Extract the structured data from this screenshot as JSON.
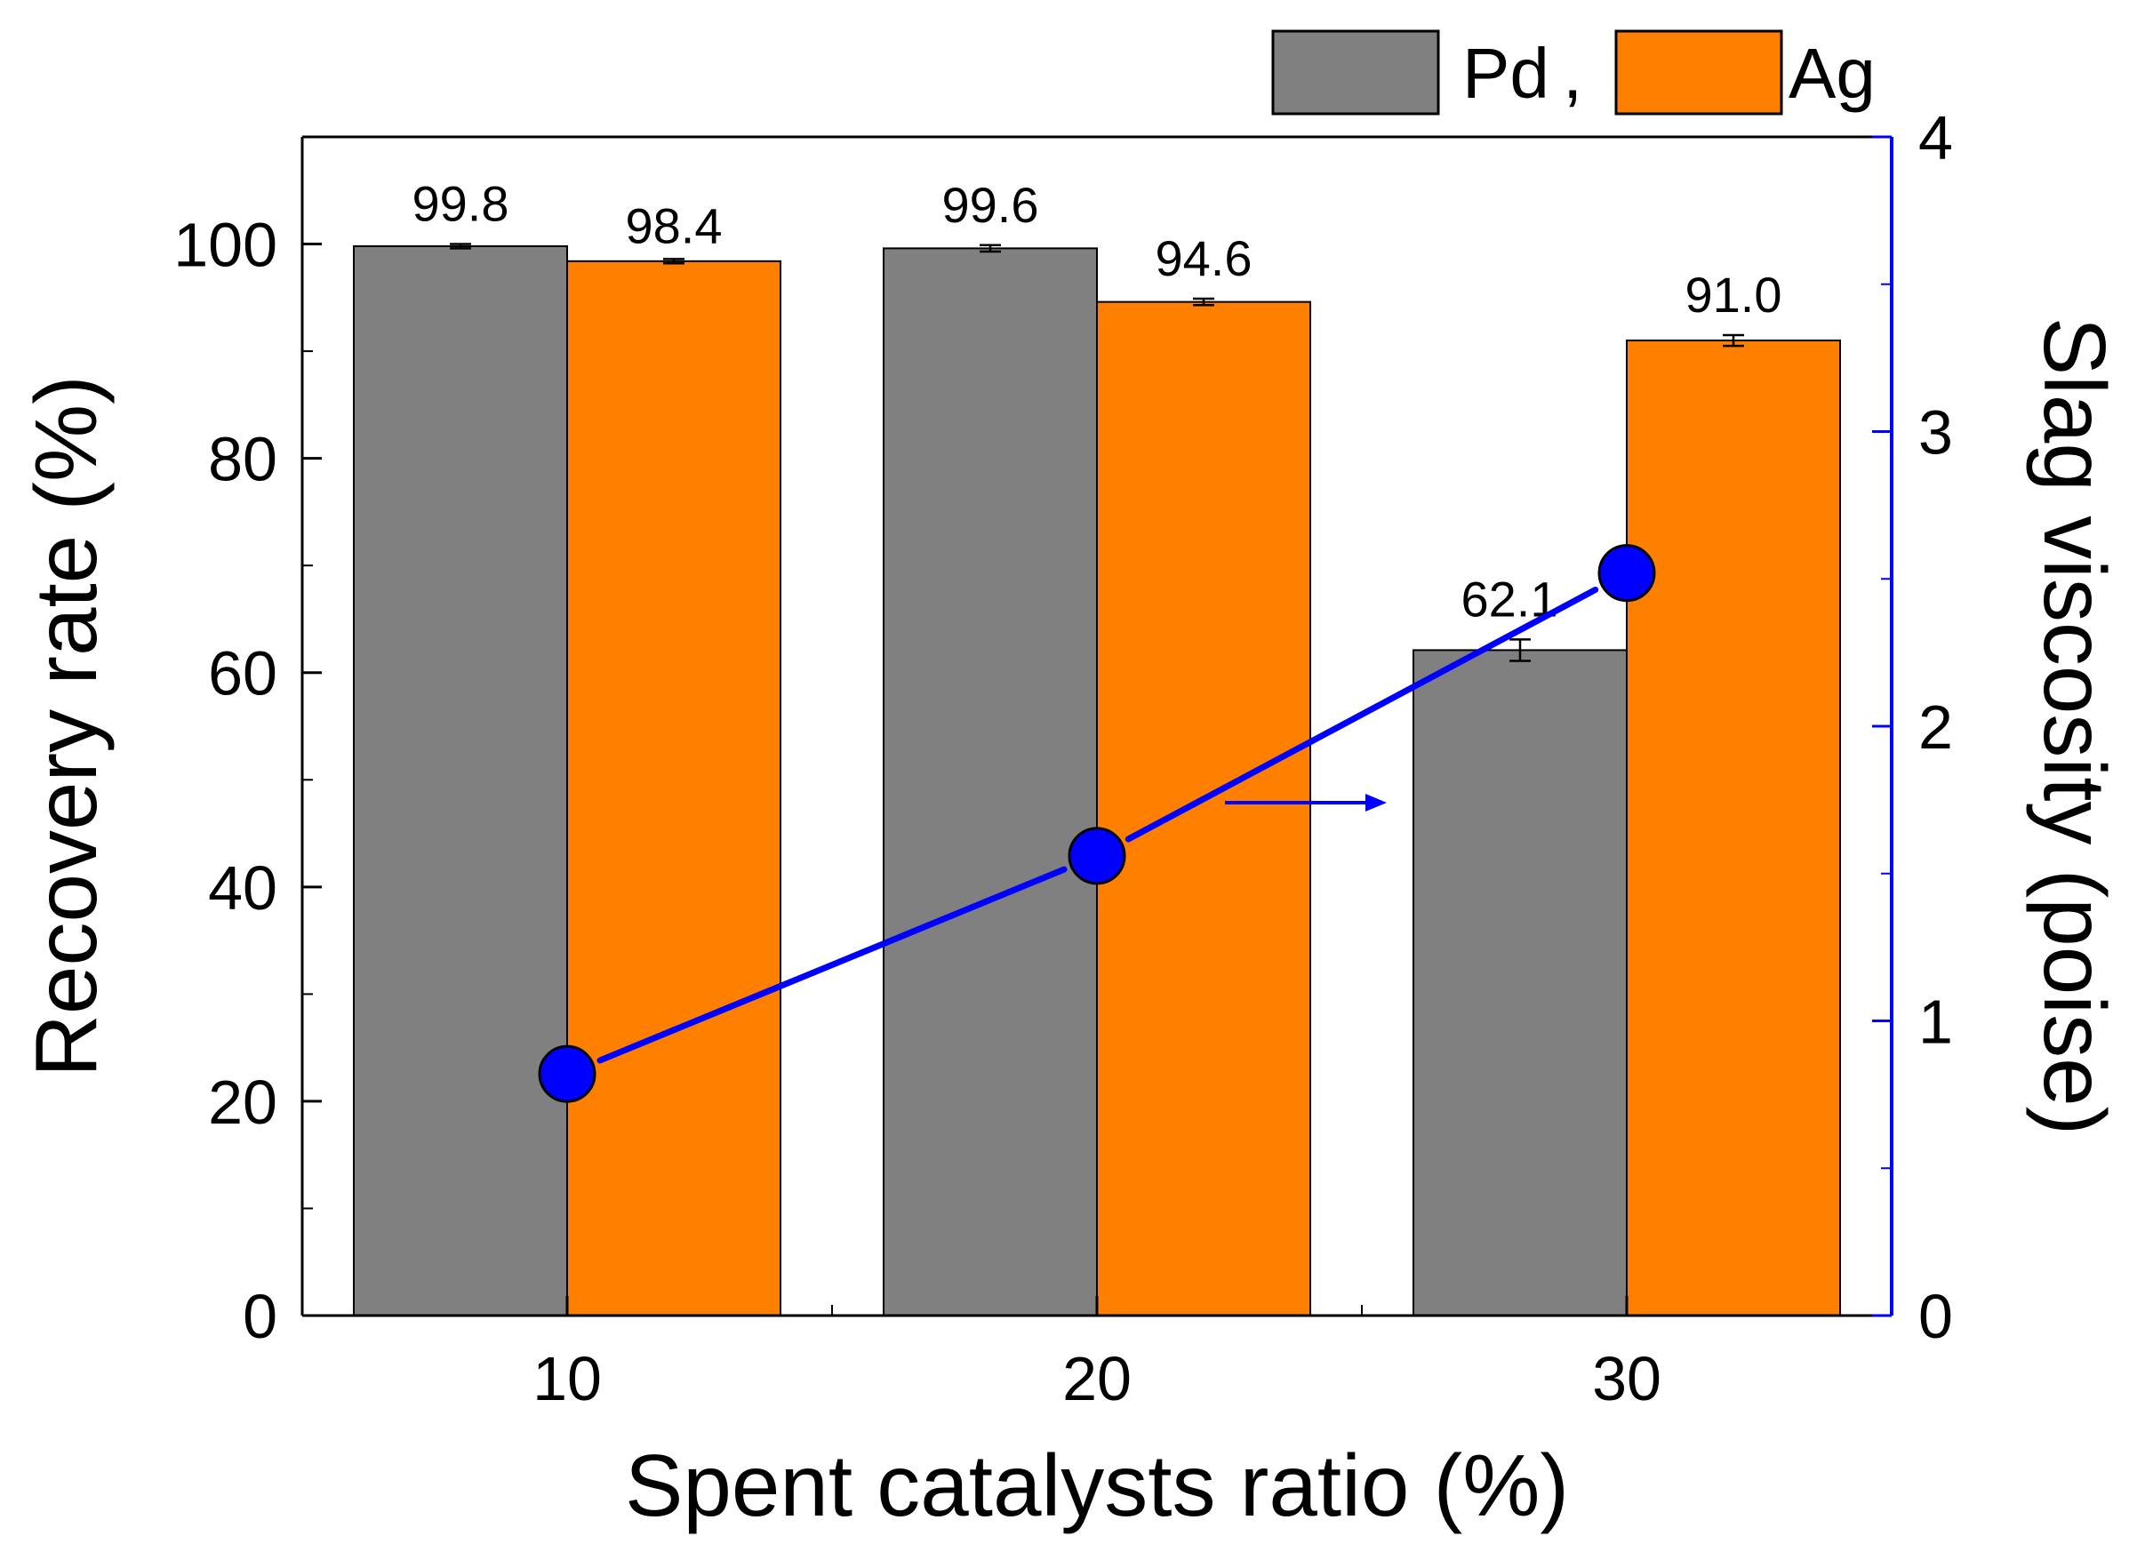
{
  "chart_data": {
    "type": "bar",
    "categories": [
      "10",
      "20",
      "30"
    ],
    "series": [
      {
        "name": "Pd",
        "values": [
          99.8,
          99.6,
          62.1
        ],
        "errors": [
          0.2,
          0.3,
          1.0
        ],
        "color": "#808080"
      },
      {
        "name": "Ag",
        "values": [
          98.4,
          94.6,
          91.0
        ],
        "errors": [
          0.2,
          0.3,
          0.5
        ],
        "color": "#ff8000"
      }
    ],
    "data_labels": {
      "Pd": [
        "99.8",
        "99.6",
        "62.1"
      ],
      "Ag": [
        "98.4",
        "94.6",
        "91.0"
      ]
    },
    "line_series": {
      "name": "Slag viscosity",
      "axis": "right",
      "color": "#0000ff",
      "values": [
        0.82,
        1.56,
        2.52
      ]
    },
    "xlabel": "Spent catalysts ratio (%)",
    "ylabel": "Recovery rate (%)",
    "ylabel_right": "Slag viscosity (poise)",
    "ylim": [
      0,
      110
    ],
    "ylim_right": [
      0,
      4
    ],
    "y_ticks": [
      "0",
      "20",
      "40",
      "60",
      "80",
      "100"
    ],
    "y_ticks_right": [
      "0",
      "1",
      "2",
      "3",
      "4"
    ],
    "right_axis_color": "#0000ff",
    "legend": {
      "entries": [
        "Pd",
        "Ag"
      ],
      "separator": ",",
      "placement": "top-right"
    }
  }
}
